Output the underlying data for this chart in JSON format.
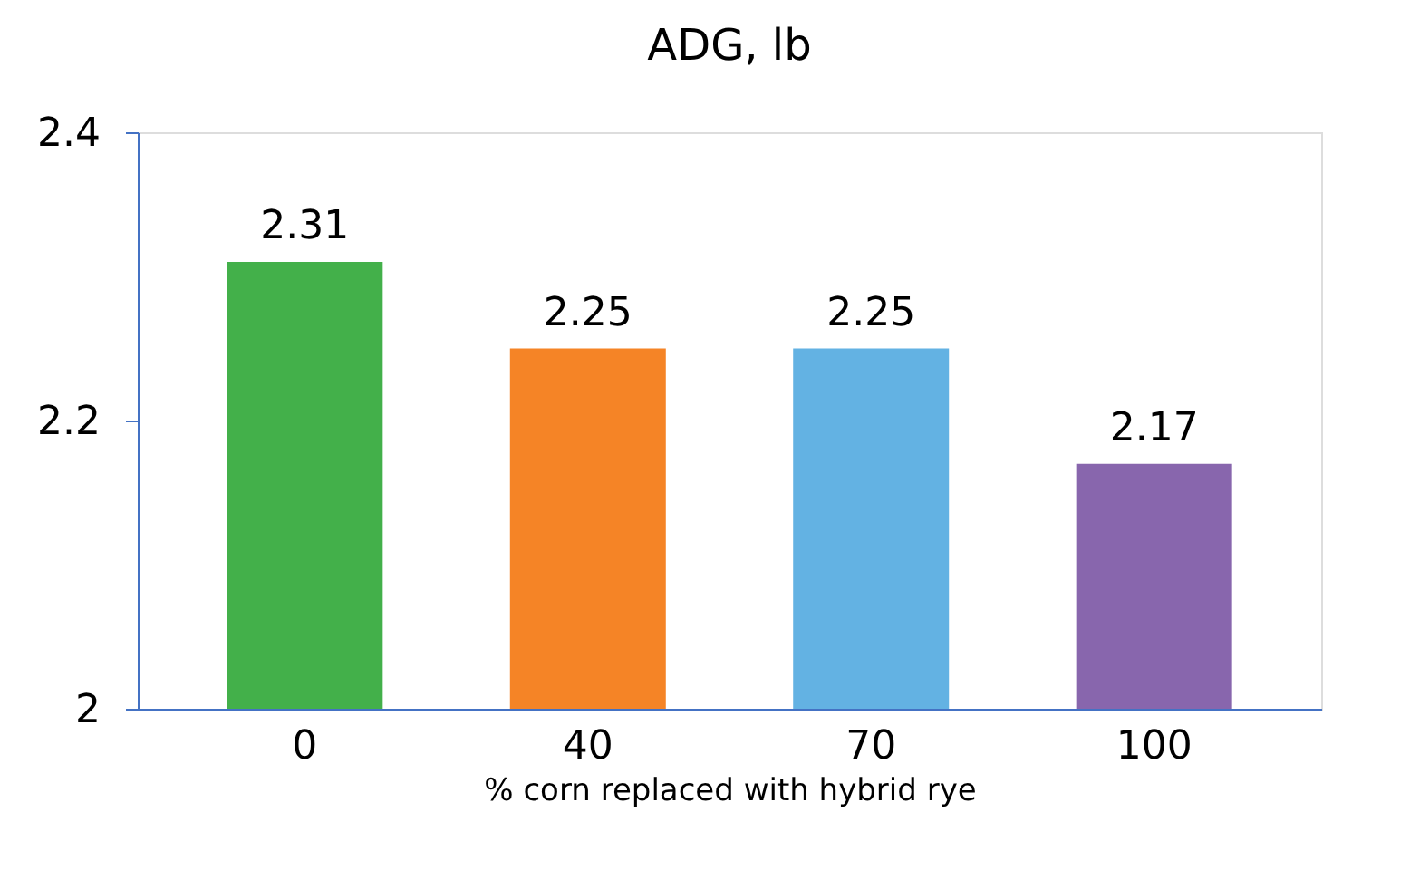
{
  "chart_data": {
    "type": "bar",
    "title": "ADG, lb",
    "xlabel": "% corn replaced with hybrid rye",
    "categories": [
      "0",
      "40",
      "70",
      "100"
    ],
    "values": [
      2.31,
      2.25,
      2.25,
      2.17
    ],
    "colors": [
      "#43b04a",
      "#f58426",
      "#63b2e3",
      "#8866ad"
    ],
    "ylim": [
      2,
      2.4
    ],
    "yticks": [
      2,
      2.2,
      2.4
    ],
    "data_labels": true,
    "grid": false
  }
}
